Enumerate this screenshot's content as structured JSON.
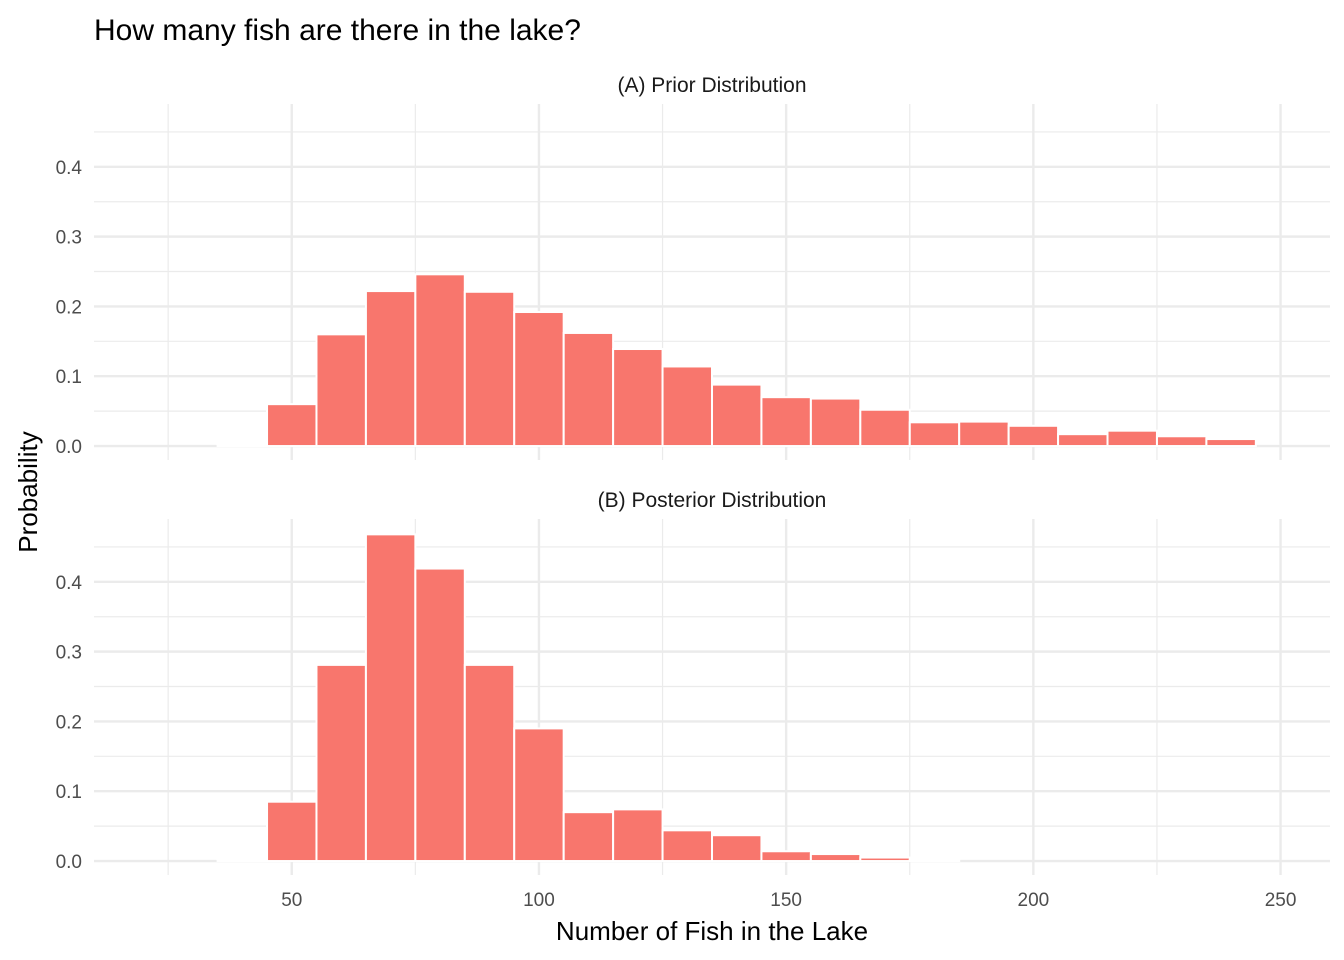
{
  "title": "How many fish are there in the lake?",
  "chart_data": {
    "type": "bar",
    "xlabel": "Number of Fish in the Lake",
    "ylabel": "Probability",
    "xlim": [
      10,
      260
    ],
    "x_ticks": [
      50,
      100,
      150,
      200,
      250
    ],
    "x_tick_labels": [
      "50",
      "100",
      "150",
      "200",
      "250"
    ],
    "y_ticks": [
      0,
      0.1,
      0.2,
      0.3,
      0.4
    ],
    "y_tick_labels": [
      "0.0",
      "0.1",
      "0.2",
      "0.3",
      "0.4"
    ],
    "bin_width": 10,
    "bin_centers": [
      30,
      40,
      50,
      60,
      70,
      80,
      90,
      100,
      110,
      120,
      130,
      140,
      150,
      160,
      170,
      180,
      190,
      200,
      210,
      220,
      230,
      240
    ],
    "grid": true,
    "legend": "none",
    "colors": {
      "bar": "#f8766d",
      "grid": "#ebebeb"
    },
    "panels": [
      {
        "title": "(A) Prior Distribution",
        "ylim": [
          -0.02,
          0.49
        ],
        "values": [
          0.0,
          0.002,
          0.06,
          0.16,
          0.222,
          0.246,
          0.221,
          0.192,
          0.162,
          0.139,
          0.114,
          0.088,
          0.07,
          0.068,
          0.052,
          0.034,
          0.035,
          0.029,
          0.017,
          0.022,
          0.014,
          0.01
        ]
      },
      {
        "title": "(B) Posterior Distribution",
        "ylim": [
          -0.02,
          0.49
        ],
        "values": [
          0.0,
          0.002,
          0.085,
          0.281,
          0.468,
          0.419,
          0.281,
          0.19,
          0.07,
          0.074,
          0.044,
          0.037,
          0.014,
          0.01,
          0.005,
          0.001,
          0.0,
          0.0,
          0.0,
          0.0,
          0.0,
          0.0
        ]
      }
    ]
  }
}
